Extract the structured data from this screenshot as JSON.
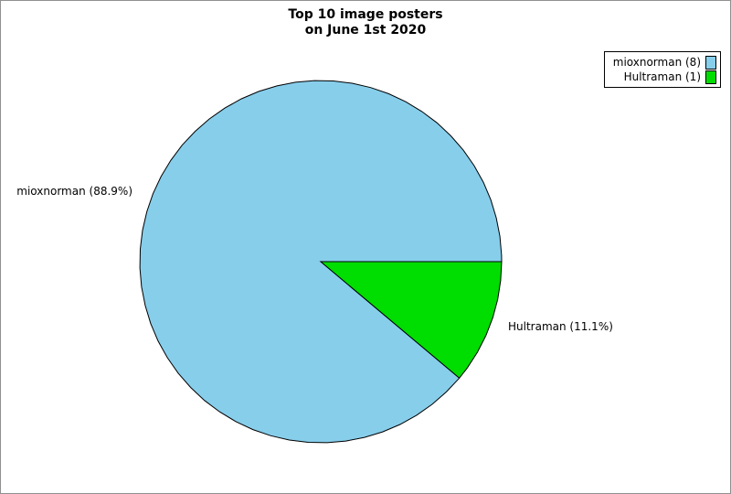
{
  "header": {
    "title_line1": "Top 10 image posters",
    "title_line2": "on June 1st 2020"
  },
  "legend": {
    "items": [
      {
        "label": "mioxnorman (8)"
      },
      {
        "label": "Hultraman (1)"
      }
    ]
  },
  "chart_data": {
    "type": "pie",
    "title": "Top 10 image posters on June 1st 2020",
    "categories": [
      "mioxnorman",
      "Hultraman"
    ],
    "values": [
      8,
      1
    ],
    "percentages": [
      88.9,
      11.1
    ],
    "colors": [
      "#87CEEB",
      "#00DD00"
    ],
    "outside_labels": [
      "mioxnorman (88.9%)",
      "Hultraman (11.1%)"
    ],
    "legend_labels": [
      "mioxnorman (8)",
      "Hultraman (1)"
    ],
    "start_angle_deg": 40,
    "direction": "clockwise",
    "legend_position": "top-right",
    "slice_outline_color": "#000000",
    "background_color": "#ffffff",
    "frame_border_color": "#909090"
  }
}
